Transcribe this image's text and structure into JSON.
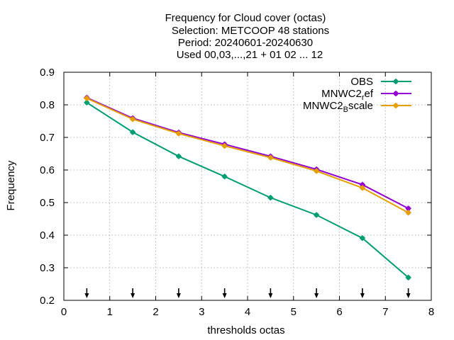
{
  "chart_data": {
    "type": "line",
    "title_lines": [
      "Frequency  for Cloud cover (octas)",
      "Selection: METCOOP     48 stations",
      "Period: 20240601-20240630",
      "Used 00,03,...,21 + 01 02 ... 12"
    ],
    "xlabel": "thresholds octas",
    "ylabel": "Frequency",
    "xlim": [
      0,
      8
    ],
    "ylim": [
      0.2,
      0.9
    ],
    "x_ticks": [
      0,
      1,
      2,
      3,
      4,
      5,
      6,
      7,
      8
    ],
    "x_tick_labels": [
      "0",
      "1",
      "2",
      "3",
      "4",
      "5",
      "6",
      "7",
      "8"
    ],
    "y_ticks": [
      0.2,
      0.3,
      0.4,
      0.5,
      0.6,
      0.7,
      0.8,
      0.9
    ],
    "y_tick_labels": [
      "0.2",
      "0.3",
      "0.4",
      "0.5",
      "0.6",
      "0.7",
      "0.8",
      "0.9"
    ],
    "grid": true,
    "legend_position": "top-right",
    "x": [
      0.5,
      1.5,
      2.5,
      3.5,
      4.5,
      5.5,
      6.5,
      7.5
    ],
    "series": [
      {
        "name": "OBS",
        "color": "#009e73",
        "values": [
          0.807,
          0.716,
          0.642,
          0.58,
          0.515,
          0.462,
          0.391,
          0.27
        ]
      },
      {
        "name": "MNWC2_ref",
        "name_base": "MNWC2",
        "name_sub": "r",
        "name_tail": "ef",
        "color": "#9400d3",
        "values": [
          0.822,
          0.759,
          0.715,
          0.679,
          0.642,
          0.602,
          0.555,
          0.482
        ]
      },
      {
        "name": "MNWC2_Bscale",
        "name_base": "MNWC2",
        "name_sub": "B",
        "name_tail": "scale",
        "color": "#e69f00",
        "values": [
          0.82,
          0.756,
          0.712,
          0.674,
          0.638,
          0.597,
          0.545,
          0.469
        ]
      }
    ],
    "arrow_markers_x": [
      0.5,
      1.5,
      2.5,
      3.5,
      4.5,
      5.5,
      6.5,
      7.5
    ]
  }
}
